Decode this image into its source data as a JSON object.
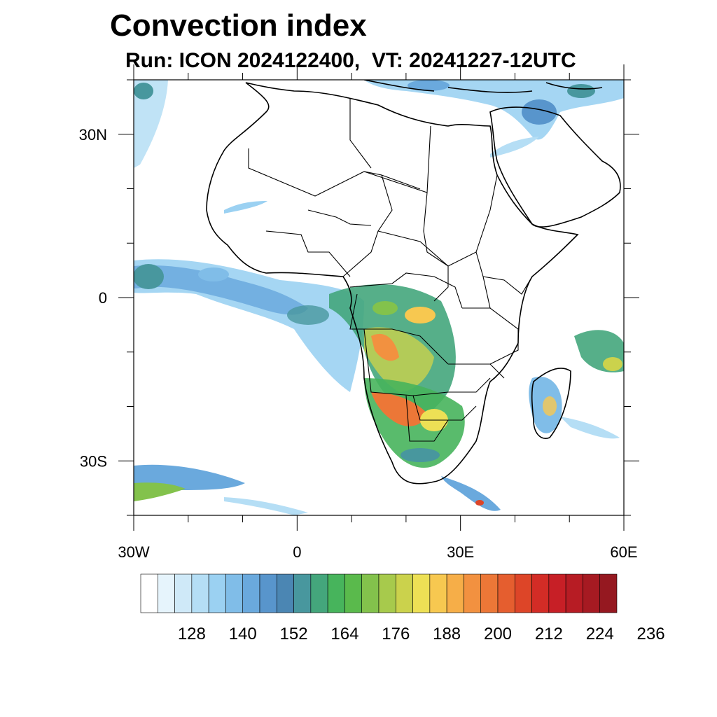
{
  "title": "Convection index",
  "subtitle": "Run: ICON 2024122400,  VT: 20241227-12UTC",
  "map": {
    "extent": {
      "lon_min": -30,
      "lon_max": 60,
      "lat_min": -40,
      "lat_max": 40
    },
    "lat_ticks": [
      {
        "value": 30,
        "label": "30N"
      },
      {
        "value": 0,
        "label": "0"
      },
      {
        "value": -30,
        "label": "30S"
      }
    ],
    "lon_ticks": [
      {
        "value": -30,
        "label": "30W"
      },
      {
        "value": 0,
        "label": "0"
      },
      {
        "value": 30,
        "label": "30E"
      },
      {
        "value": 60,
        "label": "60E"
      }
    ]
  },
  "colorbar": {
    "colors": [
      "#ffffff",
      "#e6f4fc",
      "#cfe9f8",
      "#b5def5",
      "#9bd1f2",
      "#80bde8",
      "#6aa9dd",
      "#5895cc",
      "#4b86b3",
      "#48979e",
      "#44a67c",
      "#47b45c",
      "#5aba4c",
      "#83c24c",
      "#a7ca4c",
      "#cbd24c",
      "#ede055",
      "#f7c850",
      "#f6ae48",
      "#f29140",
      "#ec7737",
      "#e55e2f",
      "#dd4528",
      "#d32c26",
      "#c71f26",
      "#b71c24",
      "#a61a22",
      "#951820"
    ],
    "tick_labels": [
      "128",
      "140",
      "152",
      "164",
      "176",
      "188",
      "200",
      "212",
      "224",
      "236"
    ]
  }
}
